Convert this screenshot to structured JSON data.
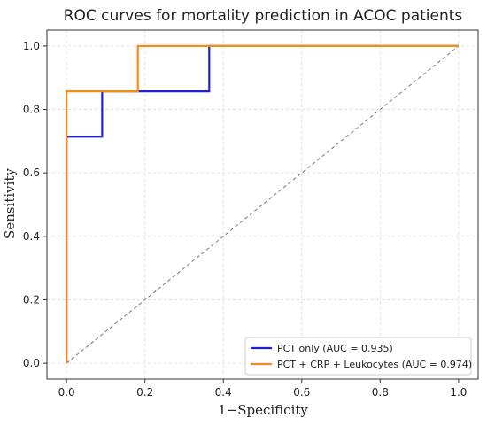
{
  "chart_data": {
    "type": "line",
    "title": "ROC curves for mortality prediction in ACOC patients",
    "xlabel": "1−Specificity",
    "ylabel": "Sensitivity",
    "xlim": [
      -0.05,
      1.05
    ],
    "ylim": [
      -0.05,
      1.05
    ],
    "x_ticks": [
      0.0,
      0.2,
      0.4,
      0.6,
      0.8,
      1.0
    ],
    "x_tick_labels": [
      "0.0",
      "0.2",
      "0.4",
      "0.6",
      "0.8",
      "1.0"
    ],
    "y_ticks": [
      0.0,
      0.2,
      0.4,
      0.6,
      0.8,
      1.0
    ],
    "y_tick_labels": [
      "0.0",
      "0.2",
      "0.4",
      "0.6",
      "0.8",
      "1.0"
    ],
    "grid": true,
    "legend_position": "bottom-right",
    "series": [
      {
        "name": "PCT only (AUC = 0.935)",
        "color": "#1f1fd6",
        "x": [
          0.0,
          0.0,
          0.0,
          0.091,
          0.091,
          0.182,
          0.364,
          0.364,
          1.0
        ],
        "y": [
          0.0,
          0.714,
          0.714,
          0.714,
          0.857,
          0.857,
          0.857,
          1.0,
          1.0
        ]
      },
      {
        "name": "PCT + CRP + Leukocytes (AUC = 0.974)",
        "color": "#f28c1a",
        "x": [
          0.0,
          0.0,
          0.182,
          0.182,
          1.0
        ],
        "y": [
          0.0,
          0.857,
          0.857,
          1.0,
          1.0
        ]
      }
    ],
    "reference_line": {
      "x": [
        0.0,
        1.0
      ],
      "y": [
        0.0,
        1.0
      ],
      "color": "#777777",
      "style": "dashed"
    }
  }
}
